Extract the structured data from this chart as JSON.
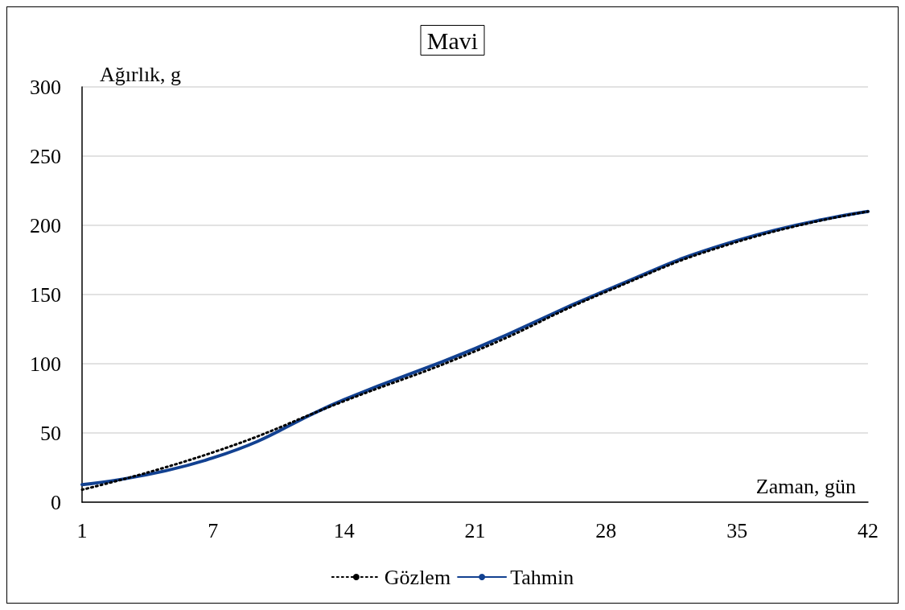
{
  "chart_data": {
    "type": "line",
    "title": "Mavi",
    "xlabel": "Zaman, gün",
    "ylabel": "Ağırlık, g",
    "categories": [
      "1",
      "7",
      "14",
      "21",
      "28",
      "35",
      "42"
    ],
    "series": [
      {
        "name": "Gözlem",
        "color": "#000000",
        "line_style": "dotted",
        "values": [
          9,
          36,
          73,
          109,
          152,
          188,
          210
        ]
      },
      {
        "name": "Tahmin",
        "color": "#124191",
        "line_style": "solid",
        "values": [
          12.7,
          32,
          74,
          111,
          153,
          189,
          210
        ]
      }
    ],
    "ylim": [
      0,
      300
    ],
    "yticks": [
      0,
      50,
      100,
      150,
      200,
      250,
      300
    ],
    "grid": "y",
    "legend": "bottom",
    "marker": "none"
  }
}
